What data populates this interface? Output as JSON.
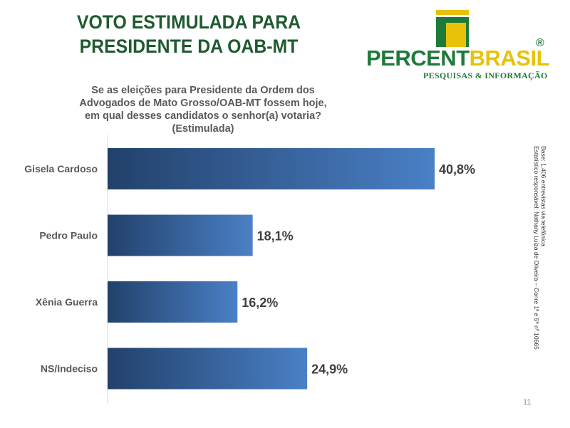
{
  "header": {
    "title_line1": "VOTO ESTIMULADA PARA",
    "title_line2": "PRESIDENTE DA OAB-MT"
  },
  "logo": {
    "part1": "PERCENT",
    "part2": "BRASIL",
    "registered": "®",
    "subtitle": "PESQUISAS & INFORMAÇÃO"
  },
  "question": "Se as eleições para Presidente da Ordem dos Advogados de Mato Grosso/OAB-MT fossem hoje, em qual desses candidatos o senhor(a) votaria? (Estimulada)",
  "side_note": {
    "line1": "Base: 1.406 entrevistas via telefônica",
    "line2": "Estatístico responsável: Nathany Luiza de Oliveira – Conre 1ª e 5ª nº 10665"
  },
  "page_number": "11",
  "colors": {
    "title": "#1f5a30",
    "bar_dark": "#22416b",
    "bar_light": "#4a80c6",
    "logo_green": "#1f7a3a",
    "logo_yellow": "#e8c20a"
  },
  "chart_data": {
    "type": "bar",
    "orientation": "horizontal",
    "categories": [
      "Gisela Cardoso",
      "Pedro Paulo",
      "Xênia Guerra",
      "NS/Indeciso"
    ],
    "values": [
      40.8,
      18.1,
      16.2,
      24.9
    ],
    "value_labels": [
      "40,8%",
      "18,1%",
      "16,2%",
      "24,9%"
    ],
    "xlim": [
      0,
      44
    ],
    "grid": false,
    "legend": "none"
  }
}
